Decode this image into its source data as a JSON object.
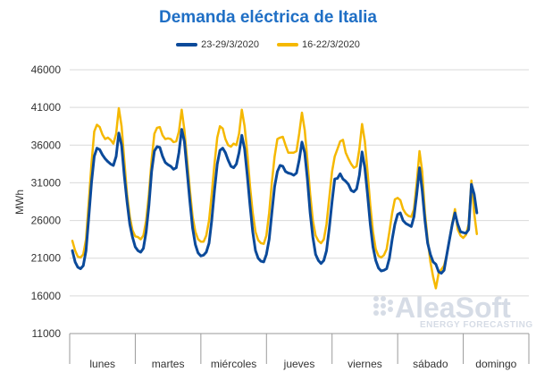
{
  "chart_data": {
    "type": "line",
    "title": "Demanda eléctrica de Italia",
    "ylabel": "MWh",
    "xlabel": "",
    "ylim": [
      11000,
      46000
    ],
    "yticks": [
      11000,
      16000,
      21000,
      26000,
      31000,
      36000,
      41000,
      46000
    ],
    "ytick_labels": [
      "11000",
      "16000",
      "21000",
      "26000",
      "31000",
      "36000",
      "41000",
      "46000"
    ],
    "categories": [
      "lunes",
      "martes",
      "miércoles",
      "jueves",
      "viernes",
      "sábado",
      "domingo"
    ],
    "grid": "horizontal",
    "legend_position": "top-center",
    "series": [
      {
        "name": "23-29/3/2020",
        "color": "#0b4a9a",
        "day_profiles": [
          [
            22000,
            20500,
            19800,
            19600,
            20000,
            22000,
            26500,
            31000,
            34500,
            35600,
            35400,
            34700,
            34200,
            33800,
            33500,
            33300,
            34500,
            37600,
            36000,
            32000,
            28500,
            25500,
            23800,
            22500
          ],
          [
            22000,
            21800,
            22300,
            24500,
            28000,
            32500,
            35200,
            35800,
            35700,
            34500,
            33700,
            33400,
            33200,
            32800,
            33000,
            35000,
            38100,
            36500,
            32500,
            28500,
            25000,
            22800,
            21700,
            21300
          ],
          [
            21400,
            21800,
            23000,
            26000,
            30000,
            33500,
            35300,
            35600,
            35000,
            34000,
            33200,
            33000,
            33500,
            35000,
            37300,
            35500,
            32000,
            28000,
            24500,
            22000,
            21000,
            20600,
            20500,
            21500
          ],
          [
            23500,
            27000,
            30500,
            32500,
            33300,
            33200,
            32500,
            32300,
            32200,
            32000,
            32300,
            34000,
            36400,
            35000,
            31500,
            27000,
            23800,
            21500,
            20700,
            20300,
            20700,
            22000,
            25000,
            28500
          ],
          [
            31500,
            31600,
            32200,
            31500,
            31200,
            30800,
            30000,
            29800,
            30200,
            32000,
            35100,
            33000,
            29500,
            25500,
            22500,
            20700,
            19700,
            19300,
            19400,
            19600,
            21000,
            23500,
            25500,
            26800
          ],
          [
            27000,
            26000,
            25600,
            25400,
            25200,
            26500,
            29500,
            33000,
            30000,
            26000,
            23000,
            21500,
            20500,
            20200,
            19200,
            19000,
            19400,
            21500,
            23500,
            25500,
            27000,
            25500,
            24500,
            24400
          ],
          [
            24300,
            24800,
            30800,
            29500,
            27000
          ]
        ]
      },
      {
        "name": "16-22/3/2020",
        "color": "#f5b800",
        "day_profiles": [
          [
            23300,
            22000,
            21200,
            21100,
            21500,
            23500,
            28500,
            33500,
            37800,
            38700,
            38400,
            37400,
            36800,
            37000,
            36700,
            36200,
            37500,
            40900,
            38500,
            34000,
            29500,
            26500,
            24700,
            23900
          ],
          [
            23800,
            23500,
            24000,
            26000,
            29500,
            34000,
            37500,
            38300,
            38400,
            37300,
            36800,
            36900,
            36800,
            36400,
            36500,
            37800,
            40700,
            38000,
            34000,
            30000,
            26500,
            24500,
            23500,
            23200
          ],
          [
            23200,
            24000,
            26000,
            29500,
            33500,
            37000,
            38500,
            38200,
            36800,
            36000,
            35800,
            36200,
            36000,
            37500,
            40700,
            38500,
            35000,
            30500,
            27000,
            24500,
            23400,
            23000,
            22900,
            24000
          ],
          [
            27000,
            31000,
            34500,
            36800,
            37000,
            37100,
            36000,
            35000,
            35000,
            35000,
            35200,
            37500,
            40300,
            38000,
            34000,
            29500,
            26000,
            24000,
            23300,
            23000,
            23500,
            25500,
            29000,
            32500
          ],
          [
            34500,
            35500,
            36500,
            36700,
            35000,
            34200,
            33500,
            33000,
            33200,
            35500,
            38800,
            36500,
            32500,
            28000,
            24500,
            22200,
            21300,
            21100,
            21400,
            22200,
            24500,
            27000,
            28800,
            29000
          ],
          [
            28700,
            27500,
            26900,
            26600,
            26500,
            27500,
            31000,
            35200,
            32500,
            27000,
            23500,
            20500,
            18500,
            17000,
            19000,
            19500,
            20000,
            21500,
            23500,
            25700,
            27500,
            24800,
            24000,
            23700
          ],
          [
            24100,
            25500,
            31300,
            27000,
            24200
          ]
        ]
      }
    ]
  }
}
